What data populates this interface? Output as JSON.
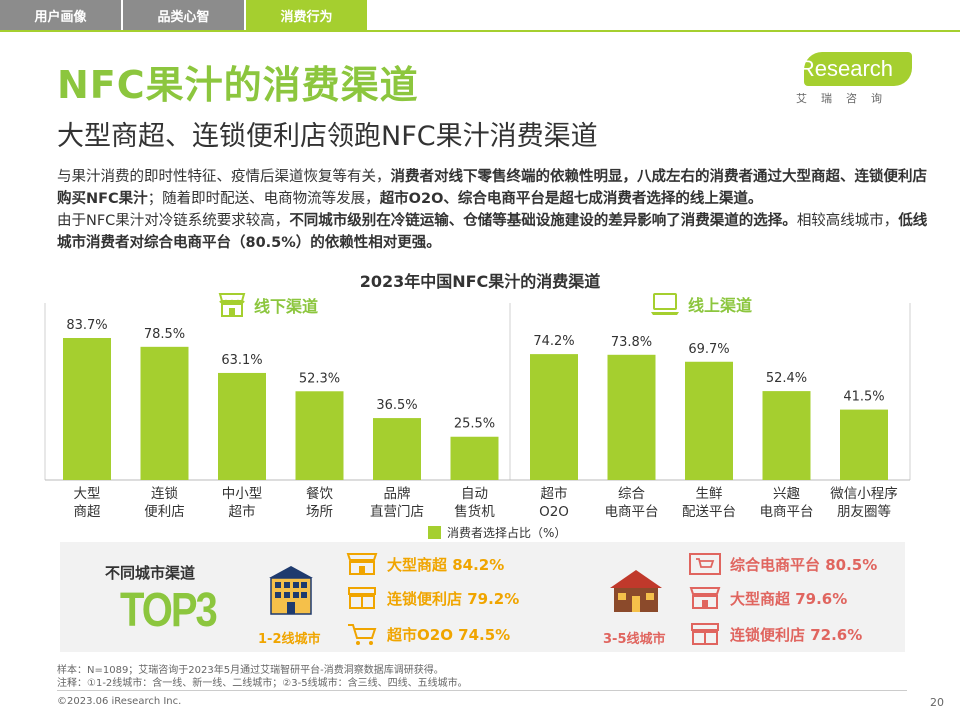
{
  "tabs": [
    {
      "label": "用户画像",
      "active": false
    },
    {
      "label": "品类心智",
      "active": false
    },
    {
      "label": "消费行为",
      "active": true
    }
  ],
  "title": "NFC果汁的消费渠道",
  "subtitle": "大型商超、连锁便利店领跑NFC果汁消费渠道",
  "logo": {
    "text": "iResearch",
    "cn": "艾瑞咨询"
  },
  "body": {
    "p1_a": "与果汁消费的即时性特征、疫情后渠道恢复等有关，",
    "p1_b": "消费者对线下零售终端的依赖性明显，八成左右的消费者通过大型商超、连锁便利店购买NFC果汁",
    "p1_c": "；随着即时配送、电商物流等发展，",
    "p1_d": "超市O2O、综合电商平台是超七成消费者选择的线上渠道。",
    "p2_a": "由于NFC果汁对冷链系统要求较高，",
    "p2_b": "不同城市级别在冷链运输、仓储等基础设施建设的差异影响了消费渠道的选择。",
    "p2_c": "相较高线城市，",
    "p2_d": "低线城市消费者对综合电商平台（80.5%）的依赖性相对更强。"
  },
  "chart_data": {
    "type": "bar",
    "title": "2023年中国NFC果汁的消费渠道",
    "categories": [
      "大型\n商超",
      "连锁\n便利店",
      "中小型\n超市",
      "餐饮\n场所",
      "品牌\n直营门店",
      "自动\n售货机",
      "超市\nO2O",
      "综合\n电商平台",
      "生鲜\n配送平台",
      "兴趣\n电商平台",
      "微信小程序\n朋友圈等"
    ],
    "series": [
      {
        "name": "消费者选择占比（%）",
        "values": [
          83.7,
          78.5,
          63.1,
          52.3,
          36.5,
          25.5,
          74.2,
          73.8,
          69.7,
          52.4,
          41.5
        ]
      }
    ],
    "value_labels": [
      "83.7%",
      "78.5%",
      "63.1%",
      "52.3%",
      "36.5%",
      "25.5%",
      "74.2%",
      "73.8%",
      "69.7%",
      "52.4%",
      "41.5%"
    ],
    "groups": [
      {
        "label": "线下渠道",
        "count": 6
      },
      {
        "label": "线上渠道",
        "count": 5
      }
    ],
    "ylim": [
      0,
      100
    ],
    "color": "#a5cf2f",
    "legend_position": "bottom"
  },
  "legend_label": "消费者选择占比（%）",
  "city": {
    "title": "不同城市渠道",
    "top": "TOP3",
    "tier1": {
      "label": "1-2线城市",
      "items": [
        "大型商超 84.2%",
        "连锁便利店 79.2%",
        "超市O2O 74.5%"
      ],
      "icons": [
        "store-icon",
        "shop-icon",
        "cart-icon"
      ]
    },
    "tier2": {
      "label": "3-5线城市",
      "items": [
        "综合电商平台 80.5%",
        "大型商超 79.6%",
        "连锁便利店 72.6%"
      ],
      "icons": [
        "cart-screen-icon",
        "store-icon",
        "shop-icon"
      ]
    }
  },
  "colors": {
    "green": "#a5cf2f",
    "orange": "#f0a500",
    "red": "#e0655f"
  },
  "footnotes": {
    "line1": "样本：N=1089；艾瑞咨询于2023年5月通过艾瑞智研平台-消费洞察数据库调研获得。",
    "line2": "注释：①1-2线城市：含一线、新一线、二线城市；②3-5线城市：含三线、四线、五线城市。"
  },
  "copyright": "©2023.06 iResearch Inc.",
  "page": "20"
}
